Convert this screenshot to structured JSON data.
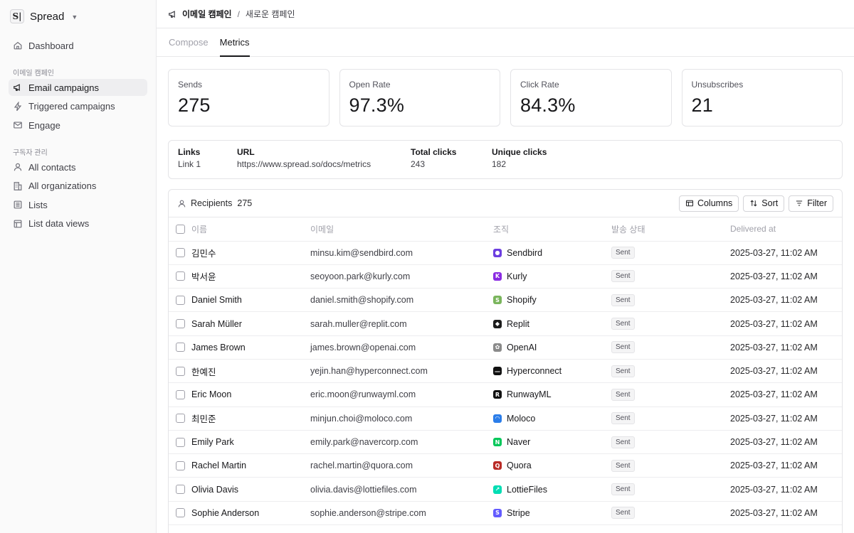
{
  "sidebar": {
    "brand": {
      "logo": "S|",
      "name": "Spread"
    },
    "dashboard": "Dashboard",
    "section_campaigns": "이메일 캠페인",
    "campaign_items": [
      "Email campaigns",
      "Triggered campaigns",
      "Engage"
    ],
    "section_subscribers": "구독자 관리",
    "subscriber_items": [
      "All contacts",
      "All organizations",
      "Lists",
      "List data views"
    ]
  },
  "breadcrumb": {
    "parent": "이메일 캠페인",
    "separator": "/",
    "current": "새로운 캠페인"
  },
  "tabs": [
    "Compose",
    "Metrics"
  ],
  "active_tab": "Metrics",
  "stats": [
    {
      "label": "Sends",
      "value": "275"
    },
    {
      "label": "Open Rate",
      "value": "97.3%"
    },
    {
      "label": "Click Rate",
      "value": "84.3%"
    },
    {
      "label": "Unsubscribes",
      "value": "21"
    }
  ],
  "links": {
    "headers": {
      "links": "Links",
      "url": "URL",
      "total": "Total clicks",
      "unique": "Unique clicks"
    },
    "row": {
      "links": "Link 1",
      "url": "https://www.spread.so/docs/metrics",
      "total": "243",
      "unique": "182"
    }
  },
  "recipients": {
    "title": "Recipients",
    "count": "275",
    "toolbar": {
      "columns": "Columns",
      "sort": "Sort",
      "filter": "Filter"
    },
    "columns": [
      "이름",
      "이메일",
      "조직",
      "발송 상태",
      "Delivered at"
    ],
    "rows": [
      {
        "name": "김민수",
        "email": "minsu.kim@sendbird.com",
        "org": "Sendbird",
        "org_color": "#6c3ee0",
        "org_glyph": "●",
        "status": "Sent",
        "delivered": "2025-03-27, 11:02 AM"
      },
      {
        "name": "박서윤",
        "email": "seoyoon.park@kurly.com",
        "org": "Kurly",
        "org_color": "#8a2be2",
        "org_glyph": "K",
        "status": "Sent",
        "delivered": "2025-03-27, 11:02 AM"
      },
      {
        "name": "Daniel Smith",
        "email": "daniel.smith@shopify.com",
        "org": "Shopify",
        "org_color": "#7ab55c",
        "org_glyph": "S",
        "status": "Sent",
        "delivered": "2025-03-27, 11:02 AM"
      },
      {
        "name": "Sarah Müller",
        "email": "sarah.muller@replit.com",
        "org": "Replit",
        "org_color": "#1c1c1c",
        "org_glyph": "◆",
        "status": "Sent",
        "delivered": "2025-03-27, 11:02 AM"
      },
      {
        "name": "James Brown",
        "email": "james.brown@openai.com",
        "org": "OpenAI",
        "org_color": "#8a8a8a",
        "org_glyph": "✿",
        "status": "Sent",
        "delivered": "2025-03-27, 11:02 AM"
      },
      {
        "name": "한예진",
        "email": "yejin.han@hyperconnect.com",
        "org": "Hyperconnect",
        "org_color": "#111111",
        "org_glyph": "—",
        "status": "Sent",
        "delivered": "2025-03-27, 11:02 AM"
      },
      {
        "name": "Eric Moon",
        "email": "eric.moon@runwayml.com",
        "org": "RunwayML",
        "org_color": "#111111",
        "org_glyph": "R",
        "status": "Sent",
        "delivered": "2025-03-27, 11:02 AM"
      },
      {
        "name": "최민준",
        "email": "minjun.choi@moloco.com",
        "org": "Moloco",
        "org_color": "#2b7de9",
        "org_glyph": "◠",
        "status": "Sent",
        "delivered": "2025-03-27, 11:02 AM"
      },
      {
        "name": "Emily Park",
        "email": "emily.park@navercorp.com",
        "org": "Naver",
        "org_color": "#03c75a",
        "org_glyph": "N",
        "status": "Sent",
        "delivered": "2025-03-27, 11:02 AM"
      },
      {
        "name": "Rachel Martin",
        "email": "rachel.martin@quora.com",
        "org": "Quora",
        "org_color": "#b92b27",
        "org_glyph": "Q",
        "status": "Sent",
        "delivered": "2025-03-27, 11:02 AM"
      },
      {
        "name": "Olivia Davis",
        "email": "olivia.davis@lottiefiles.com",
        "org": "LottieFiles",
        "org_color": "#00ddb3",
        "org_glyph": "↗",
        "status": "Sent",
        "delivered": "2025-03-27, 11:02 AM"
      },
      {
        "name": "Sophie Anderson",
        "email": "sophie.anderson@stripe.com",
        "org": "Stripe",
        "org_color": "#635bff",
        "org_glyph": "S",
        "status": "Sent",
        "delivered": "2025-03-27, 11:02 AM"
      }
    ]
  }
}
